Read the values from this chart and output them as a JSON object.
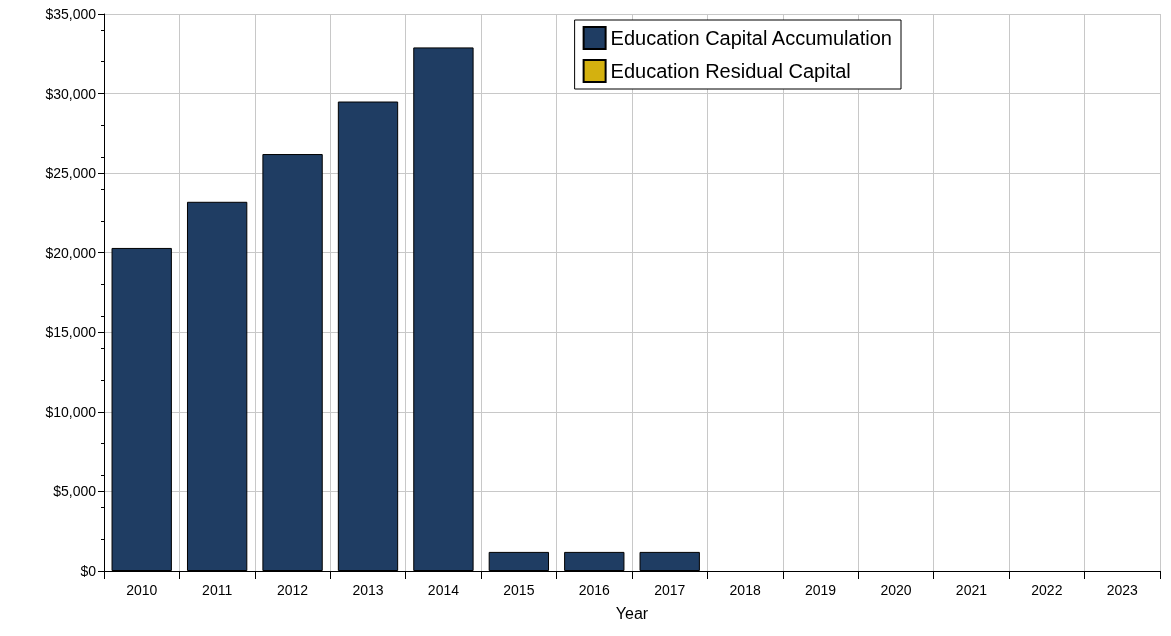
{
  "chart_data": {
    "type": "bar",
    "xlabel": "Year",
    "categories": [
      "2010",
      "2011",
      "2012",
      "2013",
      "2014",
      "2015",
      "2016",
      "2017",
      "2018",
      "2019",
      "2020",
      "2021",
      "2022",
      "2023"
    ],
    "series": [
      {
        "name": "Education Capital Accumulation",
        "color": "#1f3d63",
        "values": [
          20300,
          23200,
          26200,
          29500,
          32900,
          1200,
          1200,
          1200,
          0,
          0,
          0,
          0,
          0,
          0
        ]
      },
      {
        "name": "Education Residual Capital",
        "color": "#d4b10f",
        "values": [
          0,
          0,
          0,
          0,
          0,
          0,
          0,
          0,
          0,
          0,
          0,
          0,
          0,
          0
        ]
      }
    ],
    "stacked": true,
    "ylim": [
      0,
      35000
    ],
    "yticks": [
      {
        "value": 0,
        "label": "$0"
      },
      {
        "value": 5000,
        "label": "$5,000"
      },
      {
        "value": 10000,
        "label": "$10,000"
      },
      {
        "value": 15000,
        "label": "$15,000"
      },
      {
        "value": 20000,
        "label": "$20,000"
      },
      {
        "value": 25000,
        "label": "$25,000"
      },
      {
        "value": 30000,
        "label": "$30,000"
      },
      {
        "value": 35000,
        "label": "$35,000"
      }
    ],
    "grid": true,
    "legend": "top right"
  }
}
